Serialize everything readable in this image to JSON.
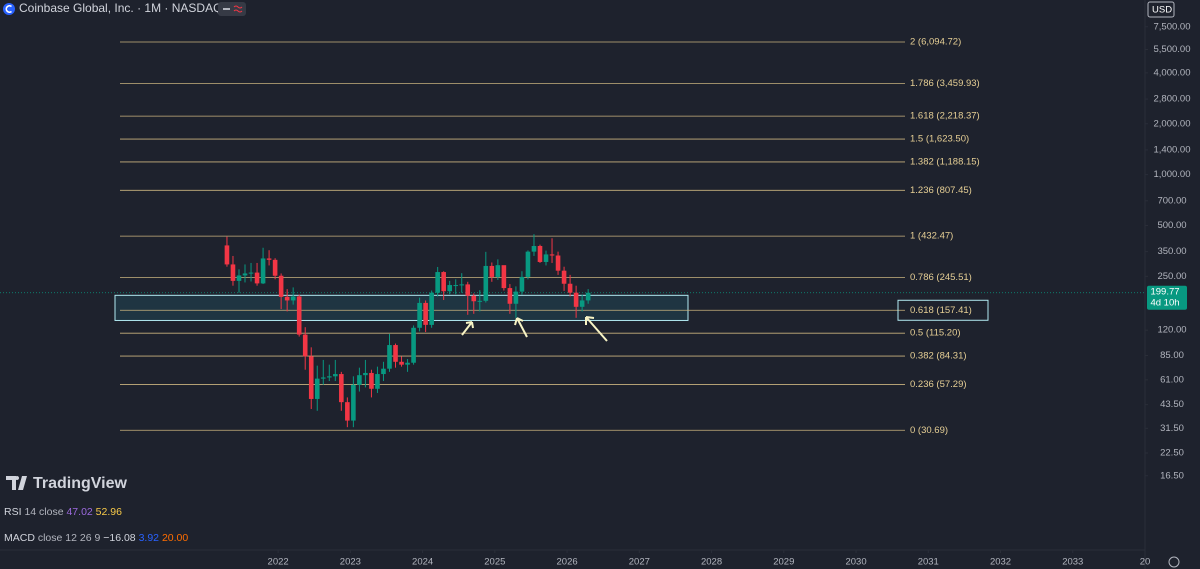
{
  "header": {
    "symbol": "Coinbase Global, Inc. · 1M · NASDAQ",
    "currency": "USD",
    "brand": "TradingView"
  },
  "indicators": [
    {
      "name": "RSI",
      "params": "14 close",
      "values": [
        {
          "text": "47.02",
          "color": "#9c6ade"
        },
        {
          "text": "52.96",
          "color": "#f7c948"
        }
      ]
    },
    {
      "name": "MACD",
      "params": "close 12 26 9",
      "values": [
        {
          "text": "−16.08",
          "color": "#d1d4dc"
        },
        {
          "text": "3.92",
          "color": "#2962ff"
        },
        {
          "text": "20.00",
          "color": "#ff6d00"
        }
      ]
    }
  ],
  "chart_data": {
    "type": "candlestick",
    "log_scale": true,
    "up_color": "#089981",
    "down_color": "#f23645",
    "x": [
      "2021-04",
      "2021-05",
      "2021-06",
      "2021-07",
      "2021-08",
      "2021-09",
      "2021-10",
      "2021-11",
      "2021-12",
      "2022-01",
      "2022-02",
      "2022-03",
      "2022-04",
      "2022-05",
      "2022-06",
      "2022-07",
      "2022-08",
      "2022-09",
      "2022-10",
      "2022-11",
      "2022-12",
      "2023-01",
      "2023-02",
      "2023-03",
      "2023-04",
      "2023-05",
      "2023-06",
      "2023-07",
      "2023-08",
      "2023-09",
      "2023-10",
      "2023-11",
      "2023-12",
      "2024-01",
      "2024-02",
      "2024-03",
      "2024-04",
      "2024-05",
      "2024-06",
      "2024-07",
      "2024-08",
      "2024-09",
      "2024-10",
      "2024-11",
      "2024-12",
      "2025-01",
      "2025-02",
      "2025-03",
      "2025-04",
      "2025-05",
      "2025-06",
      "2025-07",
      "2025-08",
      "2025-09",
      "2025-10",
      "2025-11",
      "2025-12",
      "2026-01",
      "2026-02",
      "2026-03",
      "2026-04"
    ],
    "open": [
      381,
      294,
      235,
      253,
      260,
      263,
      227,
      319,
      313,
      252,
      189,
      180,
      190,
      113,
      84,
      47,
      62,
      63,
      64,
      66,
      45,
      35,
      57,
      65,
      67,
      54,
      66,
      71,
      98,
      78,
      75,
      77,
      124,
      174,
      129,
      200,
      265,
      204,
      222,
      222,
      224,
      192,
      178,
      179,
      288,
      248,
      291,
      213,
      172,
      203,
      248,
      350,
      378,
      304,
      337,
      332,
      270,
      226,
      200,
      165,
      180
    ],
    "high": [
      429,
      330,
      275,
      294,
      300,
      300,
      369,
      357,
      320,
      260,
      210,
      215,
      195,
      125,
      95,
      74,
      80,
      75,
      80,
      68,
      48,
      64,
      72,
      80,
      70,
      73,
      78,
      114,
      100,
      84,
      81,
      128,
      187,
      180,
      206,
      284,
      268,
      235,
      240,
      261,
      232,
      198,
      207,
      349,
      302,
      315,
      290,
      225,
      218,
      268,
      356,
      444,
      385,
      355,
      420,
      350,
      285,
      255,
      220,
      195,
      210
    ],
    "low": [
      285,
      220,
      200,
      230,
      233,
      220,
      225,
      290,
      240,
      160,
      155,
      170,
      110,
      70,
      41,
      40,
      57,
      60,
      60,
      40,
      32,
      32,
      52,
      55,
      48,
      51,
      60,
      68,
      72,
      73,
      68,
      75,
      118,
      117,
      124,
      190,
      181,
      196,
      196,
      200,
      148,
      150,
      155,
      175,
      232,
      238,
      206,
      150,
      142,
      195,
      240,
      330,
      300,
      290,
      300,
      255,
      205,
      190,
      142,
      155,
      172
    ],
    "close": [
      294,
      235,
      253,
      260,
      263,
      227,
      319,
      313,
      252,
      189,
      180,
      190,
      113,
      84,
      47,
      62,
      63,
      64,
      66,
      45,
      35,
      57,
      65,
      67,
      54,
      66,
      71,
      98,
      78,
      75,
      77,
      124,
      174,
      129,
      200,
      265,
      204,
      222,
      222,
      224,
      192,
      178,
      179,
      288,
      248,
      291,
      213,
      172,
      203,
      248,
      350,
      378,
      304,
      337,
      332,
      270,
      226,
      200,
      165,
      180,
      199.77
    ],
    "xlim": [
      2018.15,
      2034.0
    ],
    "xticks": [
      2022,
      2023,
      2024,
      2025,
      2026,
      2027,
      2028,
      2029,
      2030,
      2031,
      2032,
      2033,
      {
        "value": 2034,
        "label": "20"
      }
    ],
    "ylim": [
      6,
      10800
    ],
    "yticks": [
      {
        "value": 7500,
        "label": "7,500.00"
      },
      {
        "value": 5500,
        "label": "5,500.00"
      },
      {
        "value": 4000,
        "label": "4,000.00"
      },
      {
        "value": 2800,
        "label": "2,800.00"
      },
      {
        "value": 2000,
        "label": "2,000.00"
      },
      {
        "value": 1400,
        "label": "1,400.00"
      },
      {
        "value": 1000,
        "label": "1,000.00"
      },
      {
        "value": 700,
        "label": "700.00"
      },
      {
        "value": 500,
        "label": "500.00"
      },
      {
        "value": 350,
        "label": "350.00"
      },
      {
        "value": 250,
        "label": "250.00"
      },
      {
        "value": 120,
        "label": "120.00"
      },
      {
        "value": 85,
        "label": "85.00"
      },
      {
        "value": 61,
        "label": "61.00"
      },
      {
        "value": 43.5,
        "label": "43.50"
      },
      {
        "value": 31.5,
        "label": "31.50"
      },
      {
        "value": 22.5,
        "label": "22.50"
      },
      {
        "value": 16.5,
        "label": "16.50"
      }
    ],
    "fib_color": "#c9b37e",
    "fib_levels": [
      {
        "value": 6094.72,
        "label": "2 (6,094.72)"
      },
      {
        "value": 3459.93,
        "label": "1.786 (3,459.93)"
      },
      {
        "value": 2218.37,
        "label": "1.618 (2,218.37)"
      },
      {
        "value": 1623.5,
        "label": "1.5 (1,623.50)"
      },
      {
        "value": 1188.15,
        "label": "1.382 (1,188.15)"
      },
      {
        "value": 807.45,
        "label": "1.236 (807.45)"
      },
      {
        "value": 432.47,
        "label": "1 (432.47)"
      },
      {
        "value": 245.51,
        "label": "0.786 (245.51)"
      },
      {
        "value": 157.41,
        "label": "0.618 (157.41)"
      },
      {
        "value": 115.2,
        "label": "0.5 (115.20)"
      },
      {
        "value": 84.31,
        "label": "0.382 (84.31)"
      },
      {
        "value": 57.29,
        "label": "0.236 (57.29)"
      },
      {
        "value": 30.69,
        "label": "0 (30.69)"
      }
    ],
    "zone": [
      137,
      193
    ],
    "last_price": 199.77,
    "countdown": "4d 10h"
  }
}
